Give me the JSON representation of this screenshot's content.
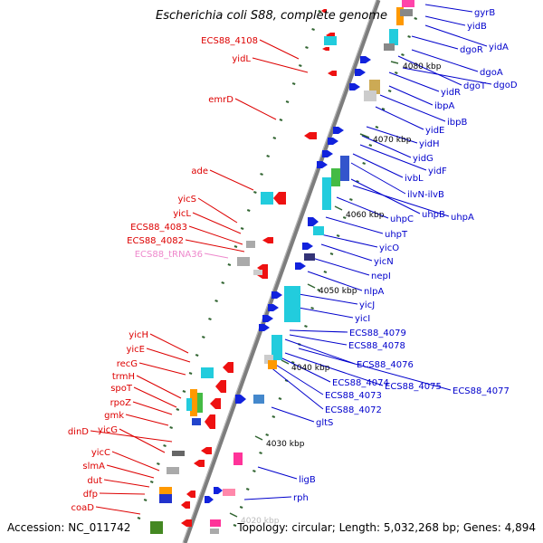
{
  "title": "Escherichia coli S88, complete genome",
  "footer": {
    "accession": "Accession: NC_011742",
    "summary": "Topology: circular; Length: 5,032,268 bp; Genes: 4,894"
  },
  "colors": {
    "left_label": "#dd0000",
    "left_label_rna": "#ee88cc",
    "right_label": "#0000cc",
    "backbone": "#888888",
    "tick": "#336633"
  },
  "kbp_ticks": [
    "4080 kbp",
    "4070 kbp",
    "4060 kbp",
    "4050 kbp",
    "4040 kbp",
    "4030 kbp",
    "4020 kbp"
  ],
  "left_labels": [
    {
      "text": "ECS88_4108",
      "kind": "gene"
    },
    {
      "text": "yidL",
      "kind": "gene"
    },
    {
      "text": "emrD",
      "kind": "gene"
    },
    {
      "text": "ade",
      "kind": "gene"
    },
    {
      "text": "yicS",
      "kind": "gene"
    },
    {
      "text": "yicL",
      "kind": "gene"
    },
    {
      "text": "ECS88_4083",
      "kind": "gene"
    },
    {
      "text": "ECS88_4082",
      "kind": "gene"
    },
    {
      "text": "ECS88_tRNA36",
      "kind": "rna"
    },
    {
      "text": "yicH",
      "kind": "gene"
    },
    {
      "text": "yicE",
      "kind": "gene"
    },
    {
      "text": "recG",
      "kind": "gene"
    },
    {
      "text": "trmH",
      "kind": "gene"
    },
    {
      "text": "spoT",
      "kind": "gene"
    },
    {
      "text": "rpoZ",
      "kind": "gene"
    },
    {
      "text": "gmk",
      "kind": "gene"
    },
    {
      "text": "dinD",
      "kind": "gene"
    },
    {
      "text": "yicG",
      "kind": "gene"
    },
    {
      "text": "yicC",
      "kind": "gene"
    },
    {
      "text": "slmA",
      "kind": "gene"
    },
    {
      "text": "dut",
      "kind": "gene"
    },
    {
      "text": "dfp",
      "kind": "gene"
    },
    {
      "text": "coaD",
      "kind": "gene"
    }
  ],
  "right_labels": [
    "gyrB",
    "yidB",
    "yidA",
    "dgoR",
    "dgoA",
    "dgoT",
    "dgoD",
    "yidR",
    "ibpA",
    "ibpB",
    "yidE",
    "yidH",
    "yidG",
    "yidF",
    "ivbL",
    "ilvN-ilvB",
    "uhpA",
    "uhpB",
    "uhpC",
    "uhpT",
    "yicO",
    "yicN",
    "nepI",
    "nlpA",
    "yicJ",
    "yicI",
    "ECS88_4079",
    "ECS88_4078",
    "ECS88_4076",
    "ECS88_4077",
    "ECS88_4075",
    "ECS88_4074",
    "ECS88_4073",
    "ECS88_4072",
    "gltS",
    "ligB",
    "rph"
  ]
}
